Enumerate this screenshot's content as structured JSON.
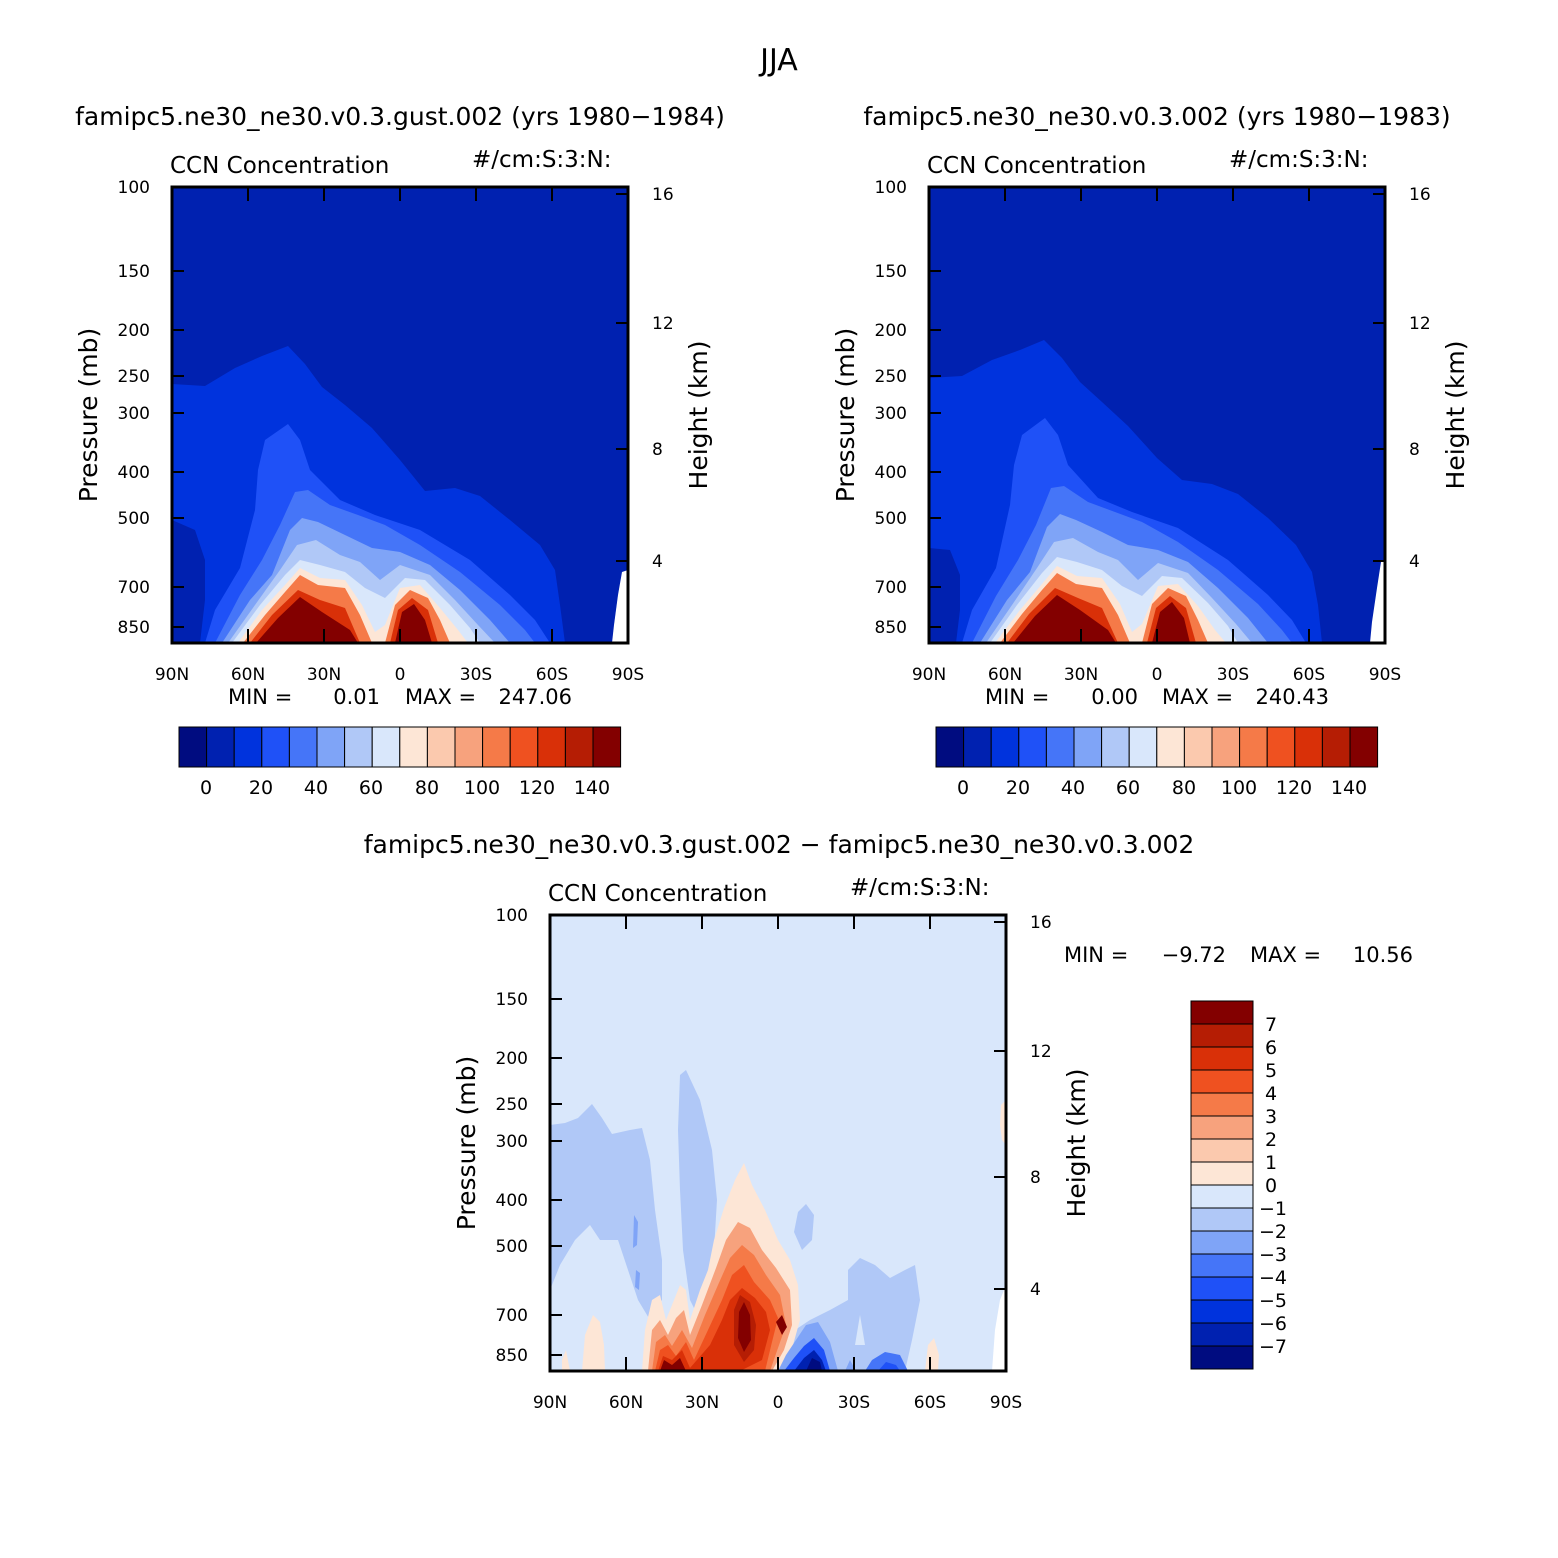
{
  "figure": {
    "season": "JJA",
    "diff_title": "famipc5.ne30_ne30.v0.3.gust.002 − famipc5.ne30_ne30.v0.3.002"
  },
  "chart_data": [
    {
      "type": "contour",
      "title": "famipc5.ne30_ne30.v0.3.gust.002 (yrs 1980−1984)",
      "variable": "CCN Concentration",
      "units": "#/cm:S:3:N:",
      "xlabel": "",
      "ylabel": "Pressure (mb)",
      "y2label": "Height (km)",
      "x_ticks": [
        "90N",
        "60N",
        "30N",
        "0",
        "30S",
        "60S",
        "90S"
      ],
      "y_ticks": [
        100,
        150,
        200,
        250,
        300,
        400,
        500,
        700,
        850
      ],
      "y2_ticks": [
        4,
        8,
        12,
        16
      ],
      "min_label": "MIN =",
      "min_value": "0.01",
      "max_label": "MAX =",
      "max_value": "247.06",
      "colorbar_labels": [
        "0",
        "20",
        "40",
        "60",
        "80",
        "100",
        "120",
        "140"
      ]
    },
    {
      "type": "contour",
      "title": "famipc5.ne30_ne30.v0.3.002 (yrs 1980−1983)",
      "variable": "CCN Concentration",
      "units": "#/cm:S:3:N:",
      "xlabel": "",
      "ylabel": "Pressure (mb)",
      "y2label": "Height (km)",
      "x_ticks": [
        "90N",
        "60N",
        "30N",
        "0",
        "30S",
        "60S",
        "90S"
      ],
      "y_ticks": [
        100,
        150,
        200,
        250,
        300,
        400,
        500,
        700,
        850
      ],
      "y2_ticks": [
        4,
        8,
        12,
        16
      ],
      "min_label": "MIN =",
      "min_value": "0.00",
      "max_label": "MAX =",
      "max_value": "240.43",
      "colorbar_labels": [
        "0",
        "20",
        "40",
        "60",
        "80",
        "100",
        "120",
        "140"
      ]
    },
    {
      "type": "contour",
      "title": "",
      "variable": "CCN Concentration",
      "units": "#/cm:S:3:N:",
      "xlabel": "",
      "ylabel": "Pressure (mb)",
      "y2label": "Height (km)",
      "x_ticks": [
        "90N",
        "60N",
        "30N",
        "0",
        "30S",
        "60S",
        "90S"
      ],
      "y_ticks": [
        100,
        150,
        200,
        250,
        300,
        400,
        500,
        700,
        850
      ],
      "y2_ticks": [
        4,
        8,
        12,
        16
      ],
      "min_label": "MIN =",
      "min_value": "−9.72",
      "max_label": "MAX =",
      "max_value": "10.56",
      "colorbar_labels": [
        "7",
        "6",
        "5",
        "4",
        "3",
        "2",
        "1",
        "0",
        "−1",
        "−2",
        "−3",
        "−4",
        "−5",
        "−6",
        "−7"
      ]
    }
  ],
  "colors": {
    "main_scale": [
      "#000c80",
      "#0021b0",
      "#0033dd",
      "#1f51f7",
      "#4575f8",
      "#7fa4f7",
      "#b0c8f7",
      "#d9e7fb",
      "#fde6d6",
      "#fbc9ae",
      "#f7a27d",
      "#f57a48",
      "#ef5120",
      "#d93008",
      "#b51d04",
      "#830000"
    ],
    "diff_scale": [
      "#830000",
      "#b51d04",
      "#d93008",
      "#ef5120",
      "#f57a48",
      "#f7a27d",
      "#fbc9ae",
      "#fde6d6",
      "#d9e7fb",
      "#b0c8f7",
      "#7fa4f7",
      "#4575f8",
      "#1f51f7",
      "#0033dd",
      "#0021b0",
      "#000c80"
    ]
  }
}
